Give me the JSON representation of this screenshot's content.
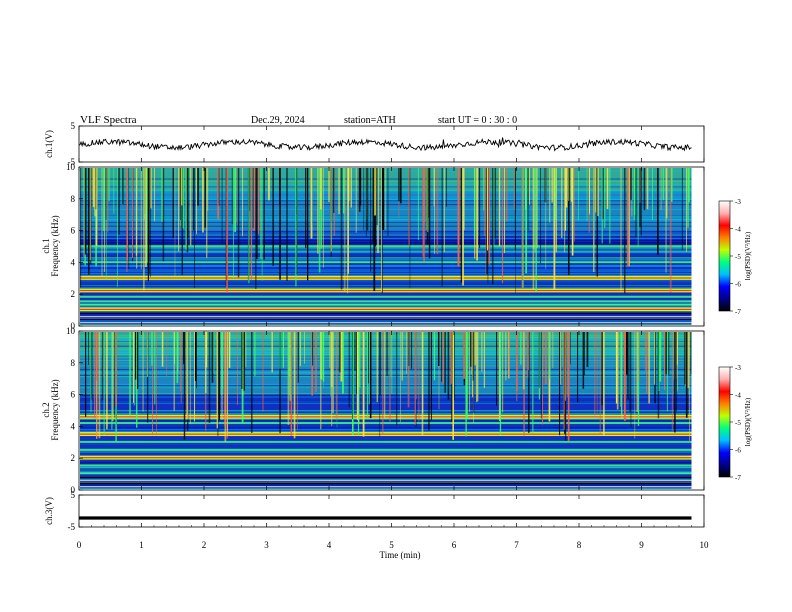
{
  "header": {
    "title": "VLF  Spectra",
    "date": "Dec.29, 2024",
    "station": "station=ATH",
    "start_ut": "start  UT  =    0  : 30 : 0"
  },
  "colorbar": {
    "label": "log(PSD)(V²/Hz)",
    "ticks": [
      -3,
      -4,
      -5,
      -6,
      -7
    ],
    "tick_labels": [
      "-3",
      "-4",
      "-5",
      "-6",
      "-7"
    ],
    "colors": [
      "#000000",
      "#00008b",
      "#0000ff",
      "#00bfff",
      "#00ff80",
      "#bfff00",
      "#ff8000",
      "#ff0000",
      "#ffb0b0",
      "#ffffff"
    ]
  },
  "chart_data": [
    {
      "type": "line",
      "name": "ch1-waveform",
      "ylabel": "ch.1(V)",
      "ylim": [
        -5,
        5
      ],
      "yticks": [
        5,
        -5
      ],
      "ytick_labels": [
        "5",
        "-5"
      ],
      "xlim": [
        0,
        10
      ],
      "baseline": -0.2
    },
    {
      "type": "heatmap",
      "name": "ch1-spectrogram",
      "ylabel_top": "ch.1",
      "ylabel": "Frequency  (kHz)",
      "ylim": [
        0,
        10
      ],
      "yticks": [
        0,
        2,
        4,
        6,
        8,
        10
      ],
      "ytick_labels": [
        "0",
        "2",
        "4",
        "6",
        "8",
        "10"
      ],
      "xlim": [
        0,
        10
      ],
      "zlim": [
        -7,
        -3
      ],
      "zunit": "log(PSD)(V²/Hz)",
      "strong_bands_khz": [
        1.0,
        2.2,
        3.0
      ],
      "weak_bands_khz": [
        1.3,
        1.5,
        1.8,
        4.0,
        5.0
      ]
    },
    {
      "type": "heatmap",
      "name": "ch2-spectrogram",
      "ylabel_top": "ch.2",
      "ylabel": "Frequency  (kHz)",
      "ylim": [
        0,
        10
      ],
      "yticks": [
        0,
        2,
        4,
        6,
        8,
        10
      ],
      "ytick_labels": [
        "0",
        "2",
        "4",
        "6",
        "8",
        "10"
      ],
      "xlim": [
        0,
        10
      ],
      "zlim": [
        -7,
        -3
      ],
      "zunit": "log(PSD)(V²/Hz)",
      "strong_bands_khz": [
        2.0,
        3.5,
        4.6
      ],
      "weak_bands_khz": [
        1.0,
        1.5,
        2.5,
        3.0,
        4.2
      ]
    },
    {
      "type": "line",
      "name": "ch3-waveform",
      "ylabel": "ch.3(V)",
      "ylim": [
        -5,
        5
      ],
      "yticks": [
        5,
        -5
      ],
      "ytick_labels": [
        "5",
        "-5"
      ],
      "xlim": [
        0,
        10
      ],
      "baseline": -2.2
    }
  ],
  "xaxis": {
    "label": "Time  (min)",
    "range": [
      0,
      10
    ],
    "ticks": [
      0,
      1,
      2,
      3,
      4,
      5,
      6,
      7,
      8,
      9,
      10
    ],
    "tick_labels": [
      "0",
      "1",
      "2",
      "3",
      "4",
      "5",
      "6",
      "7",
      "8",
      "9",
      "10"
    ],
    "data_end_min": 9.8
  }
}
